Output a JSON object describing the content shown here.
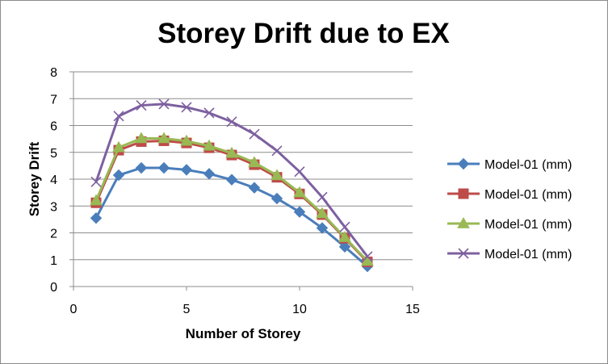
{
  "chart_data": {
    "type": "line",
    "title": "Storey Drift due to EX",
    "xlabel": "Number of Storey",
    "ylabel": "Storey Drift",
    "xlim": [
      0,
      15
    ],
    "ylim": [
      0,
      8
    ],
    "x_ticks": [
      0,
      5,
      10,
      15
    ],
    "y_ticks": [
      0,
      1,
      2,
      3,
      4,
      5,
      6,
      7,
      8
    ],
    "grid": "horizontal",
    "legend_position": "right",
    "x": [
      1,
      2,
      3,
      4,
      5,
      6,
      7,
      8,
      9,
      10,
      11,
      12,
      13
    ],
    "series": [
      {
        "name": "Model-01 (mm)",
        "color": "#4a7ebb",
        "marker": "diamond",
        "values": [
          2.55,
          4.15,
          4.42,
          4.42,
          4.35,
          4.2,
          3.98,
          3.68,
          3.28,
          2.78,
          2.18,
          1.48,
          0.75
        ]
      },
      {
        "name": "Model-01 (mm)",
        "color": "#be4b48",
        "marker": "square",
        "values": [
          3.12,
          5.08,
          5.4,
          5.43,
          5.35,
          5.17,
          4.9,
          4.54,
          4.07,
          3.45,
          2.68,
          1.8,
          0.92
        ]
      },
      {
        "name": "Model-01 (mm)",
        "color": "#98b954",
        "marker": "triangle",
        "values": [
          3.2,
          5.18,
          5.52,
          5.52,
          5.42,
          5.24,
          4.97,
          4.62,
          4.14,
          3.5,
          2.72,
          1.83,
          0.95
        ]
      },
      {
        "name": "Model-01 (mm)",
        "color": "#7d60a0",
        "marker": "x",
        "values": [
          3.9,
          6.35,
          6.75,
          6.8,
          6.68,
          6.47,
          6.14,
          5.68,
          5.06,
          4.28,
          3.33,
          2.22,
          1.12
        ]
      }
    ]
  }
}
